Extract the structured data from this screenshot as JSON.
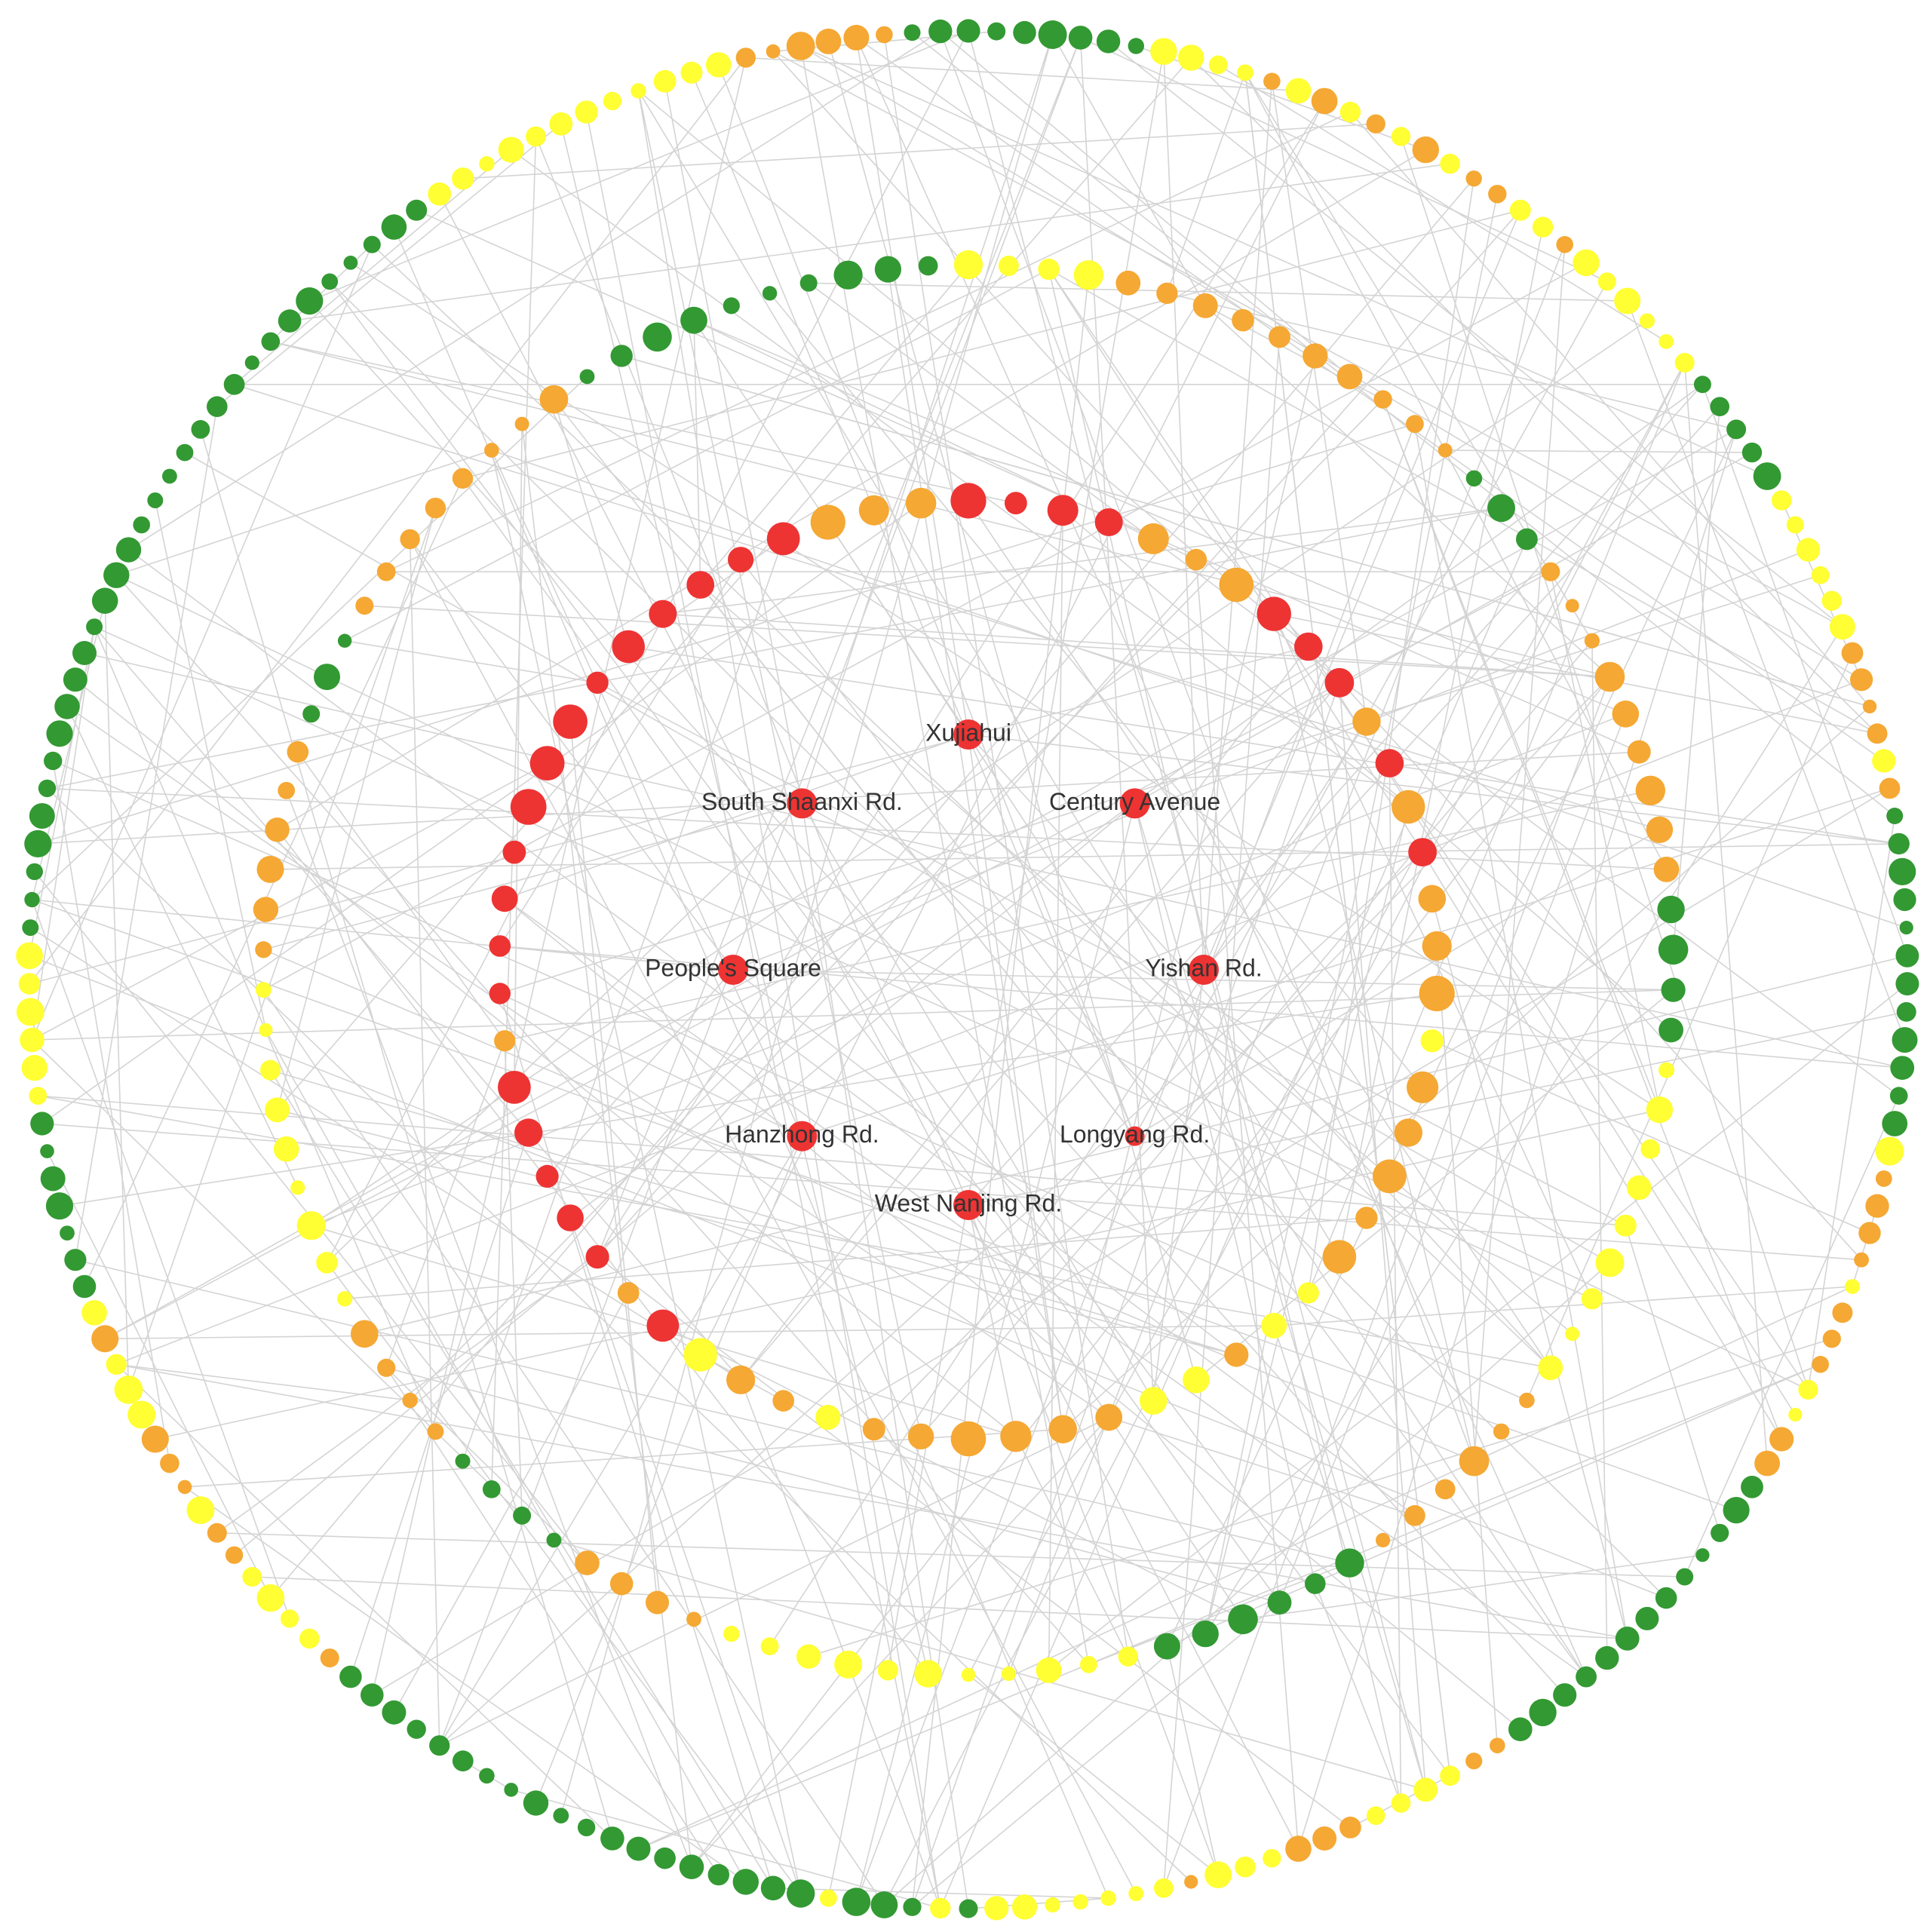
{
  "nodes": [
    {
      "label": "Xujiahui"
    },
    {
      "label": "Century Avenue"
    },
    {
      "label": "Yishan Rd."
    },
    {
      "label": "Longyang Rd."
    },
    {
      "label": "West Nanjing Rd."
    },
    {
      "label": "Hanzhong Rd."
    },
    {
      "label": "People's Square"
    },
    {
      "label": "South Shaanxi Rd."
    }
  ]
}
